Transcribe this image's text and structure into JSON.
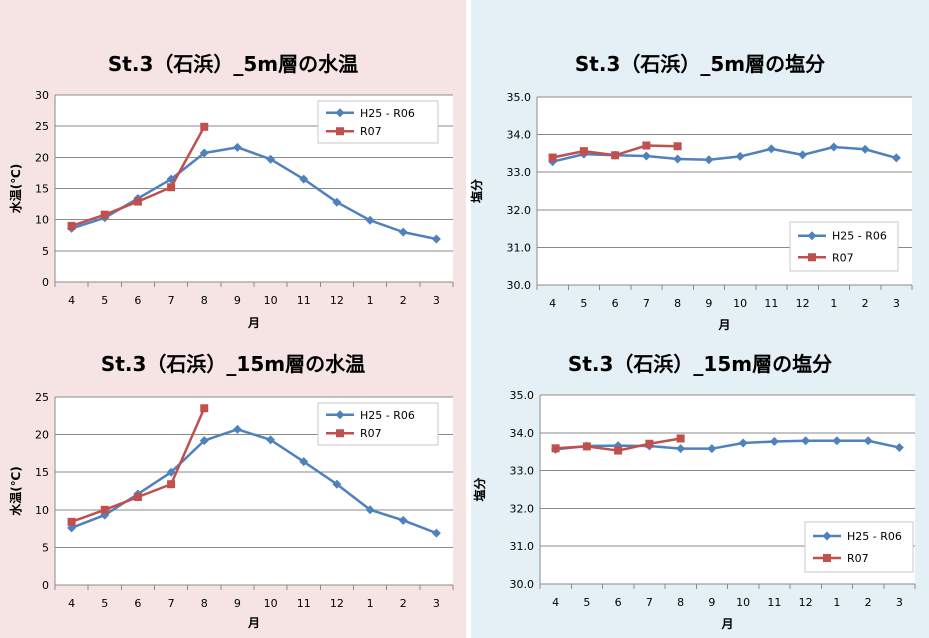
{
  "chart_data": [
    {
      "type": "line",
      "title": "St.3（石浜）_5m層の水温",
      "xlabel": "月",
      "ylabel": "水温(℃)",
      "categories": [
        "4",
        "5",
        "6",
        "7",
        "8",
        "9",
        "10",
        "11",
        "12",
        "1",
        "2",
        "3"
      ],
      "ylim": [
        0,
        30
      ],
      "yticks": [
        "0",
        "5",
        "10",
        "15",
        "20",
        "25",
        "30"
      ],
      "grid": true,
      "legend_position": "top-right",
      "series": [
        {
          "name": "H25 - R06",
          "color": "#4f81bd",
          "marker": "diamond",
          "values": [
            8.6,
            10.3,
            13.4,
            16.5,
            20.7,
            21.6,
            19.7,
            16.5,
            12.8,
            9.9,
            8.0,
            6.9
          ]
        },
        {
          "name": "R07",
          "color": "#c0504d",
          "marker": "square",
          "values": [
            9.0,
            10.8,
            12.9,
            15.2,
            24.9,
            null,
            null,
            null,
            null,
            null,
            null,
            null
          ]
        }
      ]
    },
    {
      "type": "line",
      "title": "St.3（石浜）_5m層の塩分",
      "xlabel": "月",
      "ylabel": "塩分",
      "categories": [
        "4",
        "5",
        "6",
        "7",
        "8",
        "9",
        "10",
        "11",
        "12",
        "1",
        "2",
        "3"
      ],
      "ylim": [
        30,
        35
      ],
      "yticks": [
        "30.0",
        "31.0",
        "32.0",
        "33.0",
        "34.0",
        "35.0"
      ],
      "grid": true,
      "legend_position": "bottom-right",
      "series": [
        {
          "name": "H25 - R06",
          "color": "#4f81bd",
          "marker": "diamond",
          "values": [
            33.28,
            33.48,
            33.45,
            33.43,
            33.35,
            33.33,
            33.42,
            33.62,
            33.46,
            33.67,
            33.61,
            33.38
          ]
        },
        {
          "name": "R07",
          "color": "#c0504d",
          "marker": "square",
          "values": [
            33.39,
            33.56,
            33.45,
            33.71,
            33.69,
            null,
            null,
            null,
            null,
            null,
            null,
            null
          ]
        }
      ]
    },
    {
      "type": "line",
      "title": "St.3（石浜）_15m層の水温",
      "xlabel": "月",
      "ylabel": "水温(℃)",
      "categories": [
        "4",
        "5",
        "6",
        "7",
        "8",
        "9",
        "10",
        "11",
        "12",
        "1",
        "2",
        "3"
      ],
      "ylim": [
        0,
        25
      ],
      "yticks": [
        "0",
        "5",
        "10",
        "15",
        "20",
        "25"
      ],
      "grid": true,
      "legend_position": "top-right",
      "series": [
        {
          "name": "H25 - R06",
          "color": "#4f81bd",
          "marker": "diamond",
          "values": [
            7.6,
            9.3,
            12.1,
            15.0,
            19.2,
            20.7,
            19.3,
            16.4,
            13.4,
            10.0,
            8.6,
            6.9
          ]
        },
        {
          "name": "R07",
          "color": "#c0504d",
          "marker": "square",
          "values": [
            8.4,
            10.0,
            11.7,
            13.4,
            23.5,
            null,
            null,
            null,
            null,
            null,
            null,
            null
          ]
        }
      ]
    },
    {
      "type": "line",
      "title": "St.3（石浜）_15m層の塩分",
      "xlabel": "月",
      "ylabel": "塩分",
      "categories": [
        "4",
        "5",
        "6",
        "7",
        "8",
        "9",
        "10",
        "11",
        "12",
        "1",
        "2",
        "3"
      ],
      "ylim": [
        30,
        35
      ],
      "yticks": [
        "30.0",
        "31.0",
        "32.0",
        "33.0",
        "34.0",
        "35.0"
      ],
      "grid": true,
      "legend_position": "bottom-right",
      "series": [
        {
          "name": "H25 - R06",
          "color": "#4f81bd",
          "marker": "diamond",
          "values": [
            33.56,
            33.65,
            33.66,
            33.65,
            33.58,
            33.58,
            33.73,
            33.77,
            33.79,
            33.79,
            33.79,
            33.61
          ]
        },
        {
          "name": "R07",
          "color": "#c0504d",
          "marker": "square",
          "values": [
            33.59,
            33.64,
            33.53,
            33.71,
            33.85,
            null,
            null,
            null,
            null,
            null,
            null,
            null
          ]
        }
      ]
    }
  ]
}
